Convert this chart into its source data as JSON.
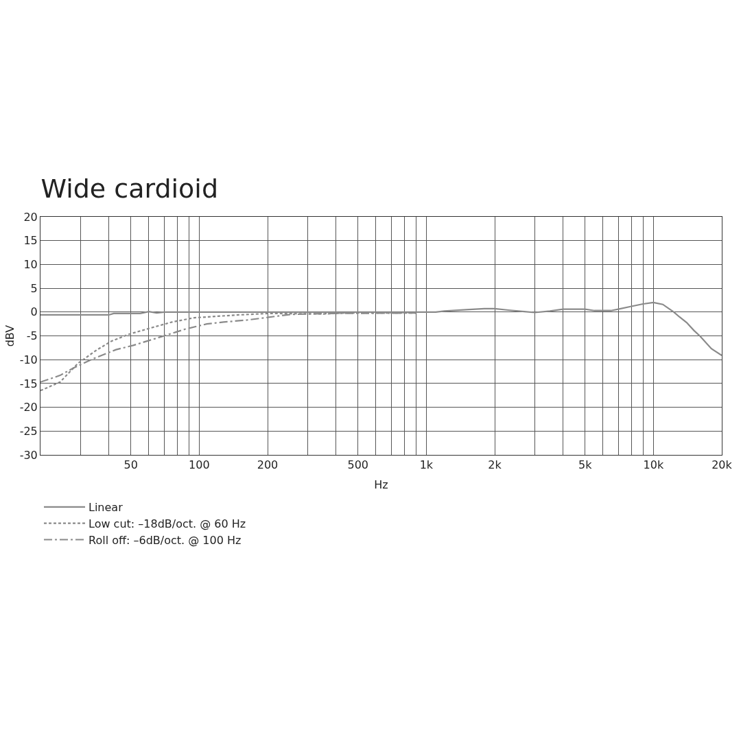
{
  "chart_data": {
    "type": "line",
    "title": "Wide cardioid",
    "xlabel": "Hz",
    "ylabel": "dBV",
    "log": "x",
    "grid": true,
    "legend": "bottom left",
    "xlim": [
      20,
      20000
    ],
    "xticks": [
      {
        "value": 30,
        "label": null
      },
      {
        "value": 40,
        "label": null
      },
      50,
      {
        "value": 60,
        "label": null
      },
      {
        "value": 70,
        "label": null
      },
      {
        "value": 80,
        "label": null
      },
      {
        "value": 90,
        "label": null
      },
      100,
      200,
      {
        "value": 300,
        "label": null
      },
      {
        "value": 400,
        "label": null
      },
      500,
      {
        "value": 600,
        "label": null
      },
      {
        "value": 700,
        "label": null
      },
      {
        "value": 800,
        "label": null
      },
      {
        "value": 900,
        "label": null
      },
      {
        "value": 1000,
        "label": "1k"
      },
      {
        "value": 2000,
        "label": "2k"
      },
      {
        "value": 3000,
        "label": null
      },
      {
        "value": 4000,
        "label": null
      },
      {
        "value": 5000,
        "label": "5k"
      },
      {
        "value": 6000,
        "label": null
      },
      {
        "value": 7000,
        "label": null
      },
      {
        "value": 8000,
        "label": null
      },
      {
        "value": 9000,
        "label": null
      },
      {
        "value": 10000,
        "label": "10k"
      },
      {
        "value": 20000,
        "label": "20k"
      }
    ],
    "ylim": [
      -30,
      20
    ],
    "yticks": [
      -30,
      -25,
      -20,
      -15,
      -10,
      -5,
      0,
      5,
      10,
      15,
      20
    ],
    "series": [
      {
        "name": "Linear",
        "color": "#8a8a8a",
        "line_style": "solid",
        "x": [
          20,
          40,
          42,
          55,
          60,
          65,
          70,
          200,
          1000,
          1100,
          1200,
          1500,
          1800,
          2000,
          2300,
          2700,
          3000,
          3500,
          4000,
          5000,
          5500,
          6500,
          7000,
          8000,
          9000,
          10000,
          11000,
          12300,
          13000,
          14000,
          15100,
          16000,
          18000,
          20000
        ],
        "values": [
          -0.6,
          -0.6,
          -0.3,
          -0.3,
          0.1,
          -0.2,
          0,
          0,
          0,
          0,
          0.2,
          0.5,
          0.7,
          0.7,
          0.4,
          0.1,
          -0.1,
          0.2,
          0.6,
          0.6,
          0.3,
          0.3,
          0.6,
          1.2,
          1.7,
          2.0,
          1.6,
          0,
          -1.0,
          -2.2,
          -3.9,
          -5.0,
          -7.7,
          -9.1
        ]
      },
      {
        "name": "Low cut: –18dB/oct. @ 60 Hz",
        "color": "#8a8a8a",
        "line_style": "dashed",
        "x": [
          20,
          24.4,
          29.2,
          35.3,
          41.1,
          49.5,
          60.6,
          75.9,
          95,
          149,
          202,
          354,
          434,
          900
        ],
        "values": [
          -16.5,
          -14.7,
          -10.8,
          -8.0,
          -6.1,
          -4.6,
          -3.4,
          -2.1,
          -1.2,
          -0.6,
          -0.3,
          -0.4,
          -0.2,
          -0.2
        ]
      },
      {
        "name": "Roll off: –6dB/oct. @ 100 Hz",
        "color": "#8a8a8a",
        "line_style": "dashdot",
        "x": [
          20,
          24.4,
          27.8,
          34.2,
          43,
          51.2,
          69,
          86.6,
          108,
          128,
          161,
          202,
          252,
          363,
          900
        ],
        "values": [
          -14.7,
          -13.3,
          -11.8,
          -9.8,
          -7.9,
          -7.0,
          -5.1,
          -3.6,
          -2.5,
          -2.1,
          -1.7,
          -1.1,
          -0.5,
          -0.3,
          -0.2
        ]
      }
    ]
  }
}
